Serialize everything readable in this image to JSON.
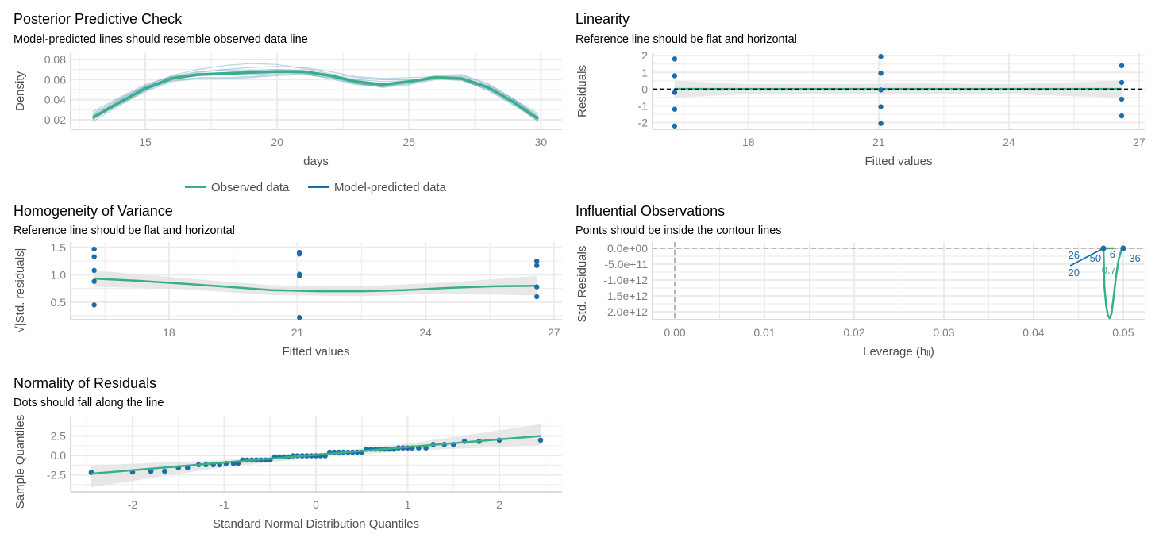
{
  "colors": {
    "observed": "#3aaf85",
    "predicted": "#1b6ca8",
    "band": "#e2e2e2",
    "grid": "#ebebeb",
    "reference": "#000000"
  },
  "chart_data": [
    {
      "type": "line",
      "title": "Posterior Predictive Check",
      "subtitle": "Model-predicted lines should resemble observed data line",
      "xlabel": "days",
      "ylabel": "Density",
      "xlim": [
        12.17,
        30.8
      ],
      "ylim": [
        0.0105,
        0.0863
      ],
      "xticks": [
        15,
        20,
        25,
        30
      ],
      "yticks": [
        0.02,
        0.04,
        0.06,
        0.08
      ],
      "ytick_labels": [
        "0.02",
        "0.04",
        "0.06",
        "0.08"
      ],
      "legend": {
        "position": "bottom",
        "entries": [
          "Observed data",
          "Model-predicted data"
        ]
      },
      "x": [
        13,
        14,
        15,
        16,
        17,
        18,
        19,
        20,
        21,
        22,
        23,
        24,
        25,
        26,
        27,
        28,
        29,
        29.9
      ],
      "observed": [
        0.022,
        0.037,
        0.051,
        0.061,
        0.065,
        0.066,
        0.067,
        0.068,
        0.068,
        0.064,
        0.058,
        0.055,
        0.058,
        0.062,
        0.061,
        0.052,
        0.037,
        0.021
      ],
      "predicted": [
        [
          0.025,
          0.04,
          0.054,
          0.064,
          0.07,
          0.074,
          0.076,
          0.075,
          0.071,
          0.066,
          0.062,
          0.06,
          0.06,
          0.061,
          0.059,
          0.05,
          0.035,
          0.02
        ],
        [
          0.018,
          0.034,
          0.049,
          0.059,
          0.062,
          0.062,
          0.063,
          0.065,
          0.066,
          0.063,
          0.057,
          0.052,
          0.055,
          0.06,
          0.062,
          0.054,
          0.039,
          0.024
        ],
        [
          0.028,
          0.042,
          0.055,
          0.063,
          0.066,
          0.067,
          0.069,
          0.07,
          0.069,
          0.065,
          0.06,
          0.058,
          0.059,
          0.063,
          0.063,
          0.053,
          0.036,
          0.018
        ],
        [
          0.02,
          0.036,
          0.05,
          0.06,
          0.064,
          0.065,
          0.065,
          0.066,
          0.067,
          0.063,
          0.056,
          0.053,
          0.057,
          0.063,
          0.064,
          0.055,
          0.04,
          0.026
        ],
        [
          0.023,
          0.039,
          0.053,
          0.062,
          0.067,
          0.07,
          0.072,
          0.073,
          0.072,
          0.068,
          0.063,
          0.061,
          0.062,
          0.063,
          0.06,
          0.049,
          0.034,
          0.019
        ],
        [
          0.021,
          0.035,
          0.048,
          0.058,
          0.061,
          0.061,
          0.062,
          0.064,
          0.065,
          0.062,
          0.056,
          0.054,
          0.058,
          0.064,
          0.065,
          0.056,
          0.04,
          0.023
        ],
        [
          0.026,
          0.041,
          0.053,
          0.061,
          0.064,
          0.066,
          0.068,
          0.069,
          0.068,
          0.064,
          0.058,
          0.056,
          0.058,
          0.061,
          0.06,
          0.051,
          0.037,
          0.022
        ],
        [
          0.024,
          0.038,
          0.052,
          0.063,
          0.068,
          0.069,
          0.069,
          0.068,
          0.066,
          0.061,
          0.055,
          0.053,
          0.056,
          0.061,
          0.062,
          0.053,
          0.038,
          0.021
        ]
      ]
    },
    {
      "type": "scatter",
      "title": "Linearity",
      "subtitle": "Reference line should be flat and horizontal",
      "xlabel": "Fitted values",
      "ylabel": "Residuals",
      "xlim": [
        15.79,
        27.13
      ],
      "ylim": [
        -2.4,
        2.15
      ],
      "xticks": [
        18,
        21,
        24,
        27
      ],
      "yticks": [
        -2,
        -1,
        0,
        1,
        2
      ],
      "ytick_labels": [
        "-2",
        "-1",
        "0",
        "1",
        "2"
      ],
      "reference_line": 0,
      "points": [
        [
          16.3,
          1.8
        ],
        [
          16.3,
          0.8
        ],
        [
          16.3,
          -0.2
        ],
        [
          16.3,
          -1.2
        ],
        [
          16.3,
          -2.2
        ],
        [
          21.05,
          1.95
        ],
        [
          21.05,
          0.95
        ],
        [
          21.05,
          -0.05
        ],
        [
          21.05,
          -1.05
        ],
        [
          21.05,
          -2.05
        ],
        [
          26.6,
          1.4
        ],
        [
          26.6,
          0.4
        ],
        [
          26.6,
          -0.6
        ],
        [
          26.6,
          -1.6
        ]
      ],
      "smooth": {
        "x": [
          16.3,
          26.6
        ],
        "y": [
          0,
          0
        ]
      },
      "band": {
        "x": [
          16.3,
          18,
          20,
          22,
          24,
          26.6
        ],
        "lower": [
          -0.5,
          -0.3,
          -0.3,
          -0.3,
          -0.3,
          -0.5
        ],
        "upper": [
          0.5,
          0.3,
          0.3,
          0.35,
          0.3,
          0.5
        ]
      }
    },
    {
      "type": "scatter",
      "title": "Homogeneity of Variance",
      "subtitle": "Reference line should be flat and horizontal",
      "xlabel": "Fitted values",
      "ylabel": "√|Std. residuals|",
      "xlim": [
        15.7,
        27.19
      ],
      "ylim": [
        0.18,
        1.6
      ],
      "xticks": [
        18,
        21,
        24,
        27
      ],
      "yticks": [
        0.5,
        1.0,
        1.5
      ],
      "ytick_labels": [
        "0.5",
        "1.0",
        "1.5"
      ],
      "points": [
        [
          16.25,
          1.47
        ],
        [
          16.25,
          1.33
        ],
        [
          16.25,
          1.08
        ],
        [
          16.25,
          0.88
        ],
        [
          16.25,
          0.45
        ],
        [
          21.05,
          1.41
        ],
        [
          21.05,
          1.38
        ],
        [
          21.05,
          1.01
        ],
        [
          21.05,
          0.98
        ],
        [
          21.05,
          0.22
        ],
        [
          26.6,
          1.25
        ],
        [
          26.6,
          1.17
        ],
        [
          26.6,
          0.78
        ],
        [
          26.6,
          0.6
        ]
      ],
      "smooth": {
        "x": [
          16.25,
          17.3,
          18.3,
          19.4,
          20.4,
          21.5,
          22.5,
          23.5,
          24.5,
          25.6,
          26.6
        ],
        "y": [
          0.93,
          0.89,
          0.84,
          0.78,
          0.72,
          0.7,
          0.7,
          0.72,
          0.76,
          0.79,
          0.8
        ]
      },
      "band": {
        "x": [
          16.25,
          18.3,
          20.4,
          22.5,
          24.5,
          26.6
        ],
        "lower": [
          0.78,
          0.74,
          0.63,
          0.61,
          0.66,
          0.62
        ],
        "upper": [
          1.08,
          0.94,
          0.81,
          0.79,
          0.86,
          0.98
        ]
      }
    },
    {
      "type": "scatter",
      "title": "Influential Observations",
      "subtitle": "Points should be inside the contour lines",
      "xlabel": "Leverage (hᵢᵢ)",
      "ylabel": "Std. Residuals",
      "xlim": [
        -0.00248,
        0.0524
      ],
      "ylim": [
        -2250000000000.0,
        200000000000.0
      ],
      "xticks": [
        0,
        0.01,
        0.02,
        0.03,
        0.04,
        0.05
      ],
      "xtick_labels": [
        "0.00",
        "0.01",
        "0.02",
        "0.03",
        "0.04",
        "0.05"
      ],
      "yticks": [
        0,
        -500000000000.0,
        -1000000000000.0,
        -1500000000000.0,
        -2000000000000.0
      ],
      "ytick_labels": [
        "0.0e+00",
        "-5.0e+11",
        "-1.0e+12",
        "-1.5e+12",
        "-2.0e+12"
      ],
      "points": [
        [
          0.0478,
          0
        ],
        [
          0.05,
          0
        ]
      ],
      "point_labels": [
        {
          "text": "26",
          "x": 0.0445,
          "y": -200000000000.0
        },
        {
          "text": "20",
          "x": 0.0445,
          "y": -750000000000.0
        },
        {
          "text": "50",
          "x": 0.0469,
          "y": -300000000000.0
        },
        {
          "text": "6",
          "x": 0.0488,
          "y": -180000000000.0
        },
        {
          "text": "36",
          "x": 0.0513,
          "y": -300000000000.0
        }
      ],
      "contour_label": {
        "text": "0.7",
        "x": 0.0484,
        "y": -300000000000.0
      },
      "smooth": {
        "x": [
          0.0441,
          0.0478
        ],
        "y": [
          -550000000000.0,
          0
        ]
      },
      "contour": {
        "x": [
          0.0478,
          0.0489,
          0.0478,
          0.04785,
          0.0479,
          0.0481,
          0.0483,
          0.0485,
          0.0487,
          0.0489,
          0.0492,
          0.0495,
          0.0498,
          0.05
        ],
        "y": [
          0,
          0,
          0,
          -500000000000.0,
          -1200000000000.0,
          -1800000000000.0,
          -2120000000000.0,
          -2200000000000.0,
          -2050000000000.0,
          -1600000000000.0,
          -900000000000.0,
          -350000000000.0,
          -50000000000.0,
          0
        ]
      },
      "reference_lines": {
        "x": 0,
        "y": 0
      }
    },
    {
      "type": "scatter",
      "title": "Normality of Residuals",
      "subtitle": "Dots should fall along the line",
      "xlabel": "Standard Normal Distribution Quantiles",
      "ylabel": "Sample Quantiles",
      "xlim": [
        -2.675,
        2.684
      ],
      "ylim": [
        -4.69,
        5.1
      ],
      "xticks": [
        -2,
        -1,
        0,
        1,
        2
      ],
      "yticks": [
        -2.5,
        0,
        2.5
      ],
      "ytick_labels": [
        "-2.5",
        "0.0",
        "2.5"
      ],
      "points": [
        [
          -2.45,
          -2.2
        ],
        [
          -2.0,
          -2.15
        ],
        [
          -1.8,
          -2.05
        ],
        [
          -1.65,
          -2.05
        ],
        [
          -1.5,
          -1.6
        ],
        [
          -1.4,
          -1.6
        ],
        [
          -1.28,
          -1.2
        ],
        [
          -1.2,
          -1.2
        ],
        [
          -1.12,
          -1.2
        ],
        [
          -1.05,
          -1.2
        ],
        [
          -0.98,
          -1.05
        ],
        [
          -0.9,
          -1.05
        ],
        [
          -0.85,
          -1.05
        ],
        [
          -0.8,
          -0.6
        ],
        [
          -0.75,
          -0.6
        ],
        [
          -0.7,
          -0.6
        ],
        [
          -0.65,
          -0.6
        ],
        [
          -0.6,
          -0.6
        ],
        [
          -0.55,
          -0.6
        ],
        [
          -0.5,
          -0.6
        ],
        [
          -0.45,
          -0.2
        ],
        [
          -0.4,
          -0.2
        ],
        [
          -0.35,
          -0.2
        ],
        [
          -0.3,
          -0.2
        ],
        [
          -0.25,
          -0.05
        ],
        [
          -0.2,
          -0.05
        ],
        [
          -0.15,
          -0.05
        ],
        [
          -0.1,
          -0.05
        ],
        [
          -0.05,
          -0.05
        ],
        [
          0,
          -0.05
        ],
        [
          0.05,
          -0.05
        ],
        [
          0.1,
          -0.05
        ],
        [
          0.15,
          0.4
        ],
        [
          0.2,
          0.4
        ],
        [
          0.25,
          0.4
        ],
        [
          0.3,
          0.4
        ],
        [
          0.35,
          0.4
        ],
        [
          0.4,
          0.4
        ],
        [
          0.45,
          0.4
        ],
        [
          0.5,
          0.4
        ],
        [
          0.55,
          0.8
        ],
        [
          0.6,
          0.8
        ],
        [
          0.65,
          0.8
        ],
        [
          0.7,
          0.8
        ],
        [
          0.75,
          0.8
        ],
        [
          0.8,
          0.8
        ],
        [
          0.85,
          0.8
        ],
        [
          0.9,
          0.95
        ],
        [
          0.95,
          0.95
        ],
        [
          1.0,
          0.95
        ],
        [
          1.05,
          0.95
        ],
        [
          1.12,
          0.95
        ],
        [
          1.2,
          0.95
        ],
        [
          1.28,
          1.4
        ],
        [
          1.4,
          1.4
        ],
        [
          1.5,
          1.4
        ],
        [
          1.62,
          1.8
        ],
        [
          1.78,
          1.8
        ],
        [
          2.0,
          1.95
        ],
        [
          2.45,
          1.95
        ]
      ],
      "smooth": {
        "x": [
          -2.45,
          2.45
        ],
        "y": [
          -2.35,
          2.5
        ]
      },
      "band": {
        "x": [
          -2.45,
          -1,
          0,
          1,
          2.45
        ],
        "lower": [
          -4.1,
          -1.5,
          -0.3,
          0.6,
          1.3
        ],
        "upper": [
          -1.3,
          -0.6,
          0.3,
          1.5,
          4.0
        ]
      }
    }
  ]
}
